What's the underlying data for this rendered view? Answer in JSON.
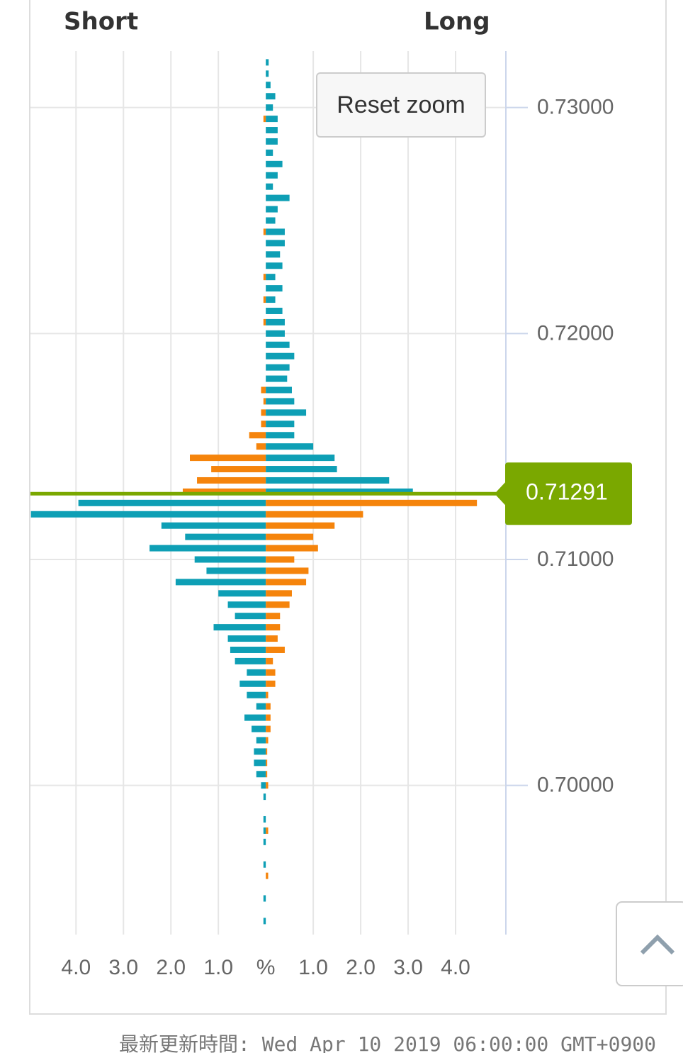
{
  "chart_data": {
    "type": "butterfly",
    "footer": "最新更新時間: Wed Apr 10 2019 06:00:00 GMT+0900",
    "button": "Reset zoom",
    "current_price": 0.71291,
    "current_price_color": "#7aa800",
    "y": [
      0.732,
      0.7315,
      0.731,
      0.7305,
      0.73,
      0.7295,
      0.729,
      0.7285,
      0.728,
      0.7275,
      0.727,
      0.7265,
      0.726,
      0.7255,
      0.725,
      0.7245,
      0.724,
      0.7235,
      0.723,
      0.7225,
      0.722,
      0.7215,
      0.721,
      0.7205,
      0.72,
      0.7195,
      0.719,
      0.7185,
      0.718,
      0.7175,
      0.717,
      0.7165,
      0.716,
      0.7155,
      0.715,
      0.7145,
      0.714,
      0.7135,
      0.713,
      0.7125,
      0.712,
      0.7115,
      0.711,
      0.7105,
      0.71,
      0.7095,
      0.709,
      0.7085,
      0.708,
      0.7075,
      0.707,
      0.7065,
      0.706,
      0.7055,
      0.705,
      0.7045,
      0.704,
      0.7035,
      0.703,
      0.7025,
      0.702,
      0.7015,
      0.701,
      0.7005,
      0.7,
      0.6995,
      0.699,
      0.6985,
      0.698,
      0.6975,
      0.697,
      0.6965,
      0.696,
      0.6955,
      0.695,
      0.6945,
      0.694
    ],
    "series": [
      {
        "name": "Short",
        "side": "left",
        "colors": [
          "#f5840c",
          "#0e9fb5"
        ],
        "values": [
          0,
          0,
          0,
          0,
          0,
          0.05,
          0,
          0,
          0,
          0,
          0,
          0,
          0,
          0,
          0,
          0.05,
          0,
          0,
          0,
          0.05,
          0,
          0.05,
          0,
          0.05,
          0,
          0,
          0,
          0,
          0,
          0.1,
          0.05,
          0.1,
          0.1,
          0.35,
          0.2,
          1.6,
          1.15,
          1.45,
          1.75,
          3.95,
          4.95,
          2.2,
          1.7,
          2.45,
          1.5,
          1.25,
          1.9,
          1.0,
          0.8,
          0.65,
          1.1,
          0.8,
          0.75,
          0.65,
          0.4,
          0.55,
          0.4,
          0.2,
          0.45,
          0.3,
          0.2,
          0.25,
          0.25,
          0.2,
          0.1,
          0.05,
          0,
          0.05,
          0.05,
          0.05,
          0,
          0.05,
          0,
          0,
          0.05,
          0,
          0.05
        ]
      },
      {
        "name": "Long",
        "side": "right",
        "colors": [
          "#0e9fb5",
          "#f5840c"
        ],
        "values": [
          0.06,
          0.06,
          0.1,
          0.2,
          0.15,
          0.25,
          0.25,
          0.25,
          0.15,
          0.35,
          0.25,
          0.15,
          0.5,
          0.25,
          0.2,
          0.4,
          0.4,
          0.3,
          0.35,
          0.2,
          0.35,
          0.2,
          0.35,
          0.4,
          0.4,
          0.5,
          0.6,
          0.5,
          0.45,
          0.55,
          0.6,
          0.85,
          0.6,
          0.6,
          1.0,
          1.45,
          1.5,
          2.6,
          3.1,
          4.45,
          2.05,
          1.45,
          1.0,
          1.1,
          0.6,
          0.9,
          0.85,
          0.55,
          0.5,
          0.3,
          0.3,
          0.25,
          0.4,
          0.15,
          0.2,
          0.2,
          0.05,
          0.1,
          0.1,
          0.1,
          0.05,
          0.03,
          0.03,
          0.03,
          0.05,
          0,
          0,
          0,
          0.05,
          0,
          0,
          0,
          0.05,
          0,
          0,
          0,
          0
        ]
      }
    ],
    "xlim": [
      -4.96,
      5.06
    ],
    "xticks": [
      {
        "value": -4,
        "label": "4.0"
      },
      {
        "value": -3,
        "label": "3.0"
      },
      {
        "value": -2,
        "label": "2.0"
      },
      {
        "value": -1,
        "label": "1.0"
      },
      {
        "value": 0,
        "label": "%"
      },
      {
        "value": 1,
        "label": "1.0"
      },
      {
        "value": 2,
        "label": "2.0"
      },
      {
        "value": 3,
        "label": "3.0"
      },
      {
        "value": 4,
        "label": "4.0"
      }
    ],
    "ylim": [
      0.6934,
      0.7325
    ],
    "yticks": [
      {
        "value": 0.7,
        "label": "0.70000"
      },
      {
        "value": 0.71,
        "label": "0.71000"
      },
      {
        "value": 0.72,
        "label": "0.72000"
      },
      {
        "value": 0.73,
        "label": "0.73000"
      }
    ],
    "grid": true
  }
}
